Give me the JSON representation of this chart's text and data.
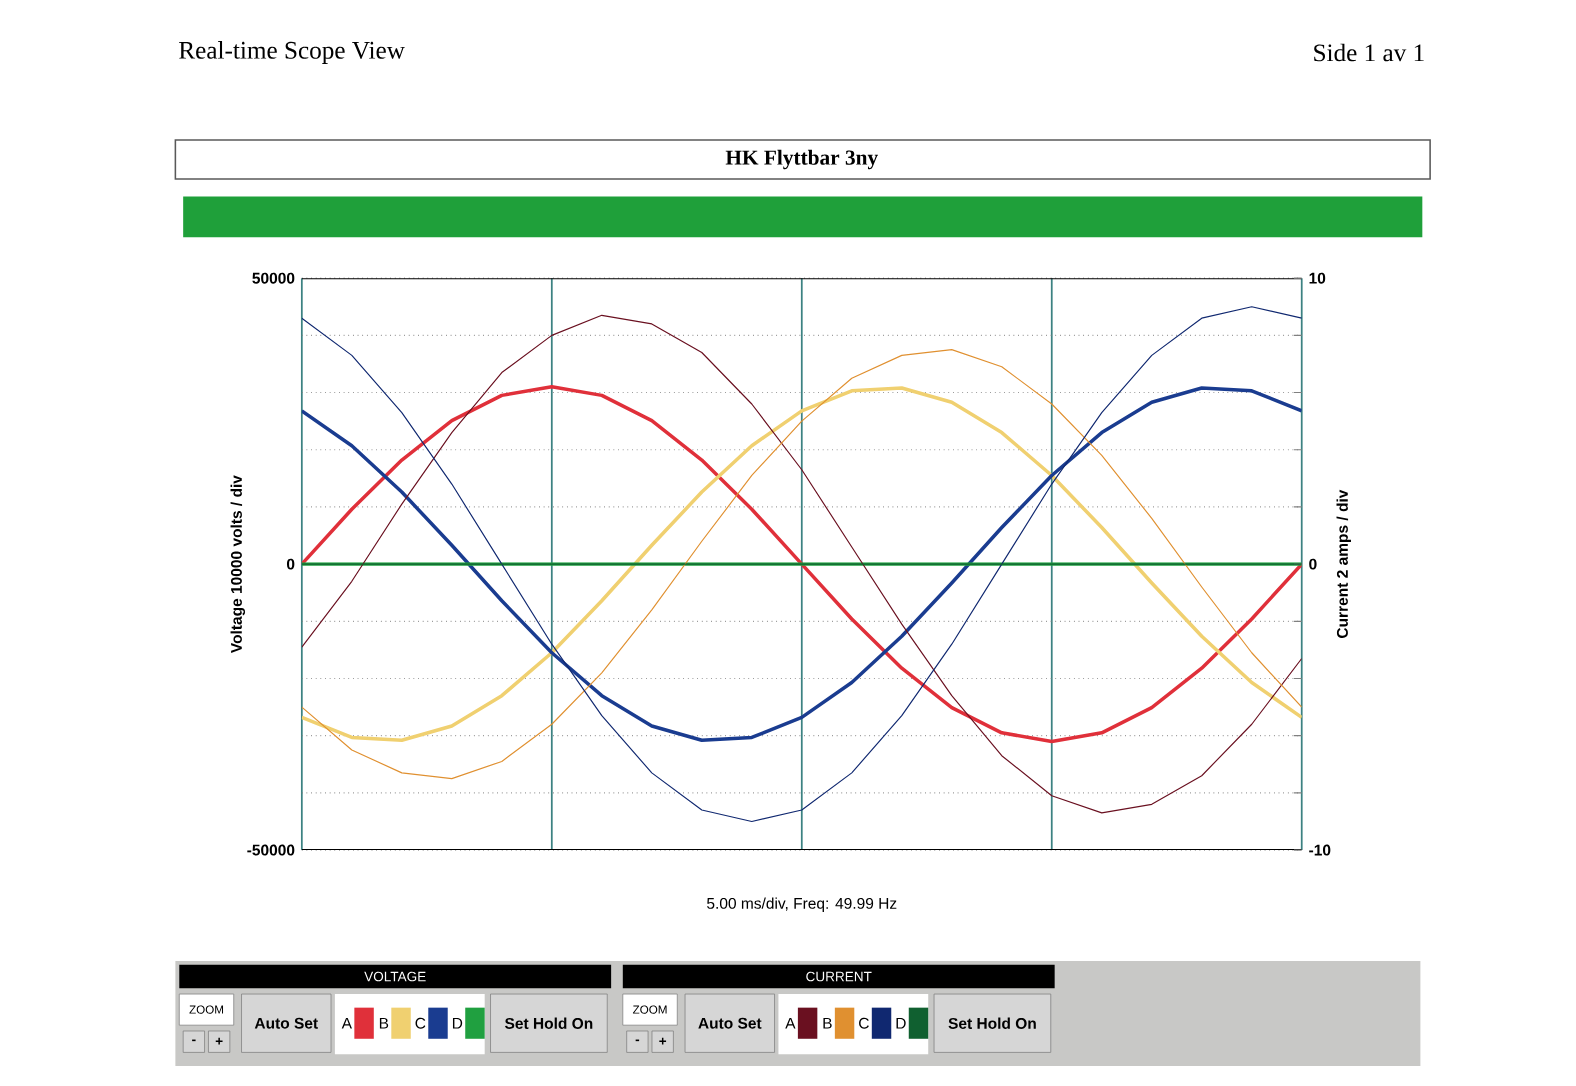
{
  "chart_data": {
    "type": "line",
    "title": "HK Flyttbar 3ny",
    "xlabel": "5.00 ms/div, Freq: 49.99 Hz",
    "ylabel": "Voltage  10000 volts / div",
    "y2label": "Current  2 amps / div",
    "categories": [
      null,
      null,
      null,
      null,
      null,
      null,
      null,
      null,
      null,
      null,
      null,
      null,
      null,
      null,
      null,
      null,
      null,
      null,
      null,
      null,
      null
    ],
    "ylim": [
      -50000,
      50000
    ],
    "yticks": [
      -50000,
      {
        "value": -40000,
        "label": null
      },
      {
        "value": -30000,
        "label": null
      },
      {
        "value": -20000,
        "label": null
      },
      {
        "value": -10000,
        "label": null
      },
      0,
      {
        "value": 10000,
        "label": null
      },
      {
        "value": 20000,
        "label": null
      },
      {
        "value": 30000,
        "label": null
      },
      {
        "value": 40000,
        "label": null
      },
      50000
    ],
    "y2lim": [
      -10,
      10
    ],
    "y2ticks": [
      -10,
      {
        "value": -8,
        "label": null
      },
      {
        "value": -6,
        "label": null
      },
      {
        "value": -4,
        "label": null
      },
      {
        "value": -2,
        "label": null
      },
      0,
      {
        "value": 2,
        "label": null
      },
      {
        "value": 4,
        "label": null
      },
      {
        "value": 6,
        "label": null
      },
      {
        "value": 8,
        "label": null
      },
      10
    ],
    "grid": true,
    "legend": "bottom",
    "series": [
      {
        "name": "A",
        "color": "#e0303a",
        "values": [
          0,
          9600,
          18200,
          25100,
          29500,
          31000,
          29500,
          25100,
          18200,
          9600,
          0,
          -9600,
          -18200,
          -25100,
          -29500,
          -31000,
          -29500,
          -25100,
          -18200,
          -9600,
          0
        ]
      },
      {
        "name": "B",
        "color": "#f0d070",
        "values": [
          -26800,
          -30300,
          -30800,
          -28300,
          -23000,
          -15500,
          -6400,
          3300,
          12600,
          20700,
          26800,
          30300,
          30800,
          28300,
          23000,
          15500,
          6400,
          -3300,
          -12600,
          -20700,
          -26800
        ]
      },
      {
        "name": "C",
        "color": "#1a3c90",
        "values": [
          26800,
          20700,
          12600,
          3300,
          -6400,
          -15500,
          -23000,
          -28300,
          -30800,
          -30300,
          -26800,
          -20700,
          -12600,
          -3300,
          6400,
          15500,
          23000,
          28300,
          30800,
          30300,
          26800
        ]
      },
      {
        "name": "D",
        "color": "#20a040",
        "values": [
          0,
          0,
          0,
          0,
          0,
          0,
          0,
          0,
          0,
          0,
          0,
          0,
          0,
          0,
          0,
          0,
          0,
          0,
          0,
          0,
          0
        ]
      },
      {
        "name": "A",
        "color": "#6a1020",
        "axis": "y2",
        "values": [
          -2.9,
          -0.6,
          2.1,
          4.6,
          6.7,
          8.0,
          8.7,
          8.4,
          7.4,
          5.6,
          3.3,
          0.6,
          -2.1,
          -4.6,
          -6.7,
          -8.1,
          -8.7,
          -8.4,
          -7.4,
          -5.6,
          -3.3
        ]
      },
      {
        "name": "B",
        "color": "#e09030",
        "axis": "y2",
        "values": [
          -5.0,
          -6.5,
          -7.3,
          -7.5,
          -6.9,
          -5.6,
          -3.8,
          -1.6,
          0.8,
          3.1,
          5.0,
          6.5,
          7.3,
          7.5,
          6.9,
          5.6,
          3.8,
          1.6,
          -0.8,
          -3.1,
          -5.0
        ]
      },
      {
        "name": "C",
        "color": "#102870",
        "axis": "y2",
        "values": [
          8.6,
          7.3,
          5.3,
          2.8,
          0,
          -2.8,
          -5.3,
          -7.3,
          -8.6,
          -9.0,
          -8.6,
          -7.3,
          -5.3,
          -2.8,
          0,
          2.8,
          5.3,
          7.3,
          8.6,
          9.0,
          8.6
        ]
      },
      {
        "name": "D",
        "color": "#106030",
        "axis": "y2",
        "values": [
          0,
          0,
          0,
          0,
          0,
          0,
          0,
          0,
          0,
          0,
          0,
          0,
          0,
          0,
          0,
          0,
          0,
          0,
          0,
          0,
          0
        ]
      }
    ],
    "annotations": [
      "Real-time Scope View",
      "Side 1 av 1",
      "VOLTAGE",
      "ZOOM",
      "-",
      "+",
      "Auto Set",
      "Set Hold On",
      "CURRENT",
      "ZOOM",
      "-",
      "+",
      "Auto Set",
      "Set Hold On"
    ]
  }
}
